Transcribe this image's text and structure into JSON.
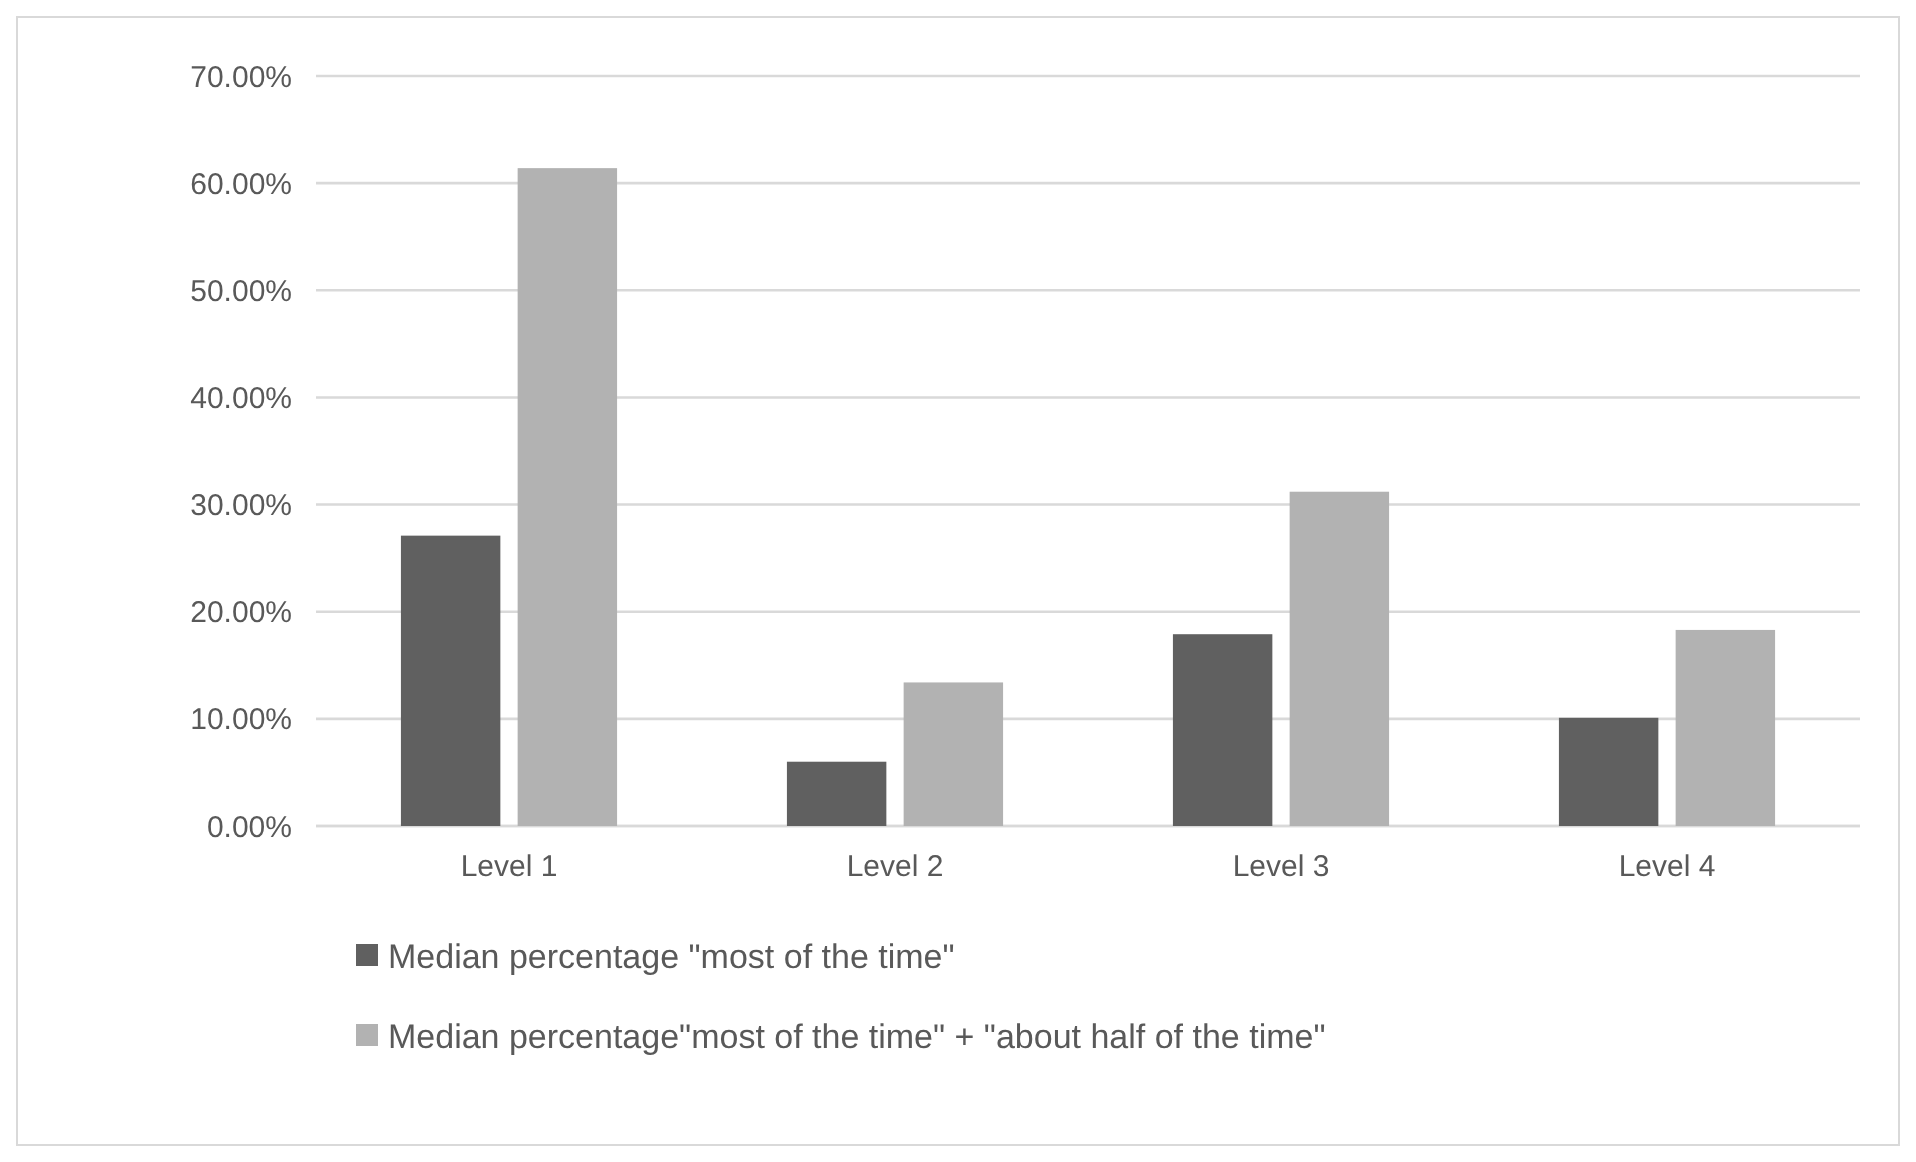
{
  "chart_data": {
    "type": "bar",
    "categories": [
      "Level 1",
      "Level 2",
      "Level 3",
      "Level 4"
    ],
    "series": [
      {
        "name": "Median percentage \"most of the time\"",
        "color": "#606060",
        "values": [
          27.1,
          6.0,
          17.9,
          10.1
        ]
      },
      {
        "name": "Median percentage\"most of the time\" + \"about half of the time\"",
        "color": "#b2b2b2",
        "values": [
          61.4,
          13.4,
          31.2,
          18.3
        ]
      }
    ],
    "ylim": [
      0,
      70
    ],
    "yticks": [
      {
        "value": 0,
        "label": "0.00%"
      },
      {
        "value": 10,
        "label": "10.00%"
      },
      {
        "value": 20,
        "label": "20.00%"
      },
      {
        "value": 30,
        "label": "30.00%"
      },
      {
        "value": 40,
        "label": "40.00%"
      },
      {
        "value": 50,
        "label": "50.00%"
      },
      {
        "value": 60,
        "label": "60.00%"
      },
      {
        "value": 70,
        "label": "70.00%"
      }
    ],
    "grid": "y",
    "legend": "bottom"
  }
}
